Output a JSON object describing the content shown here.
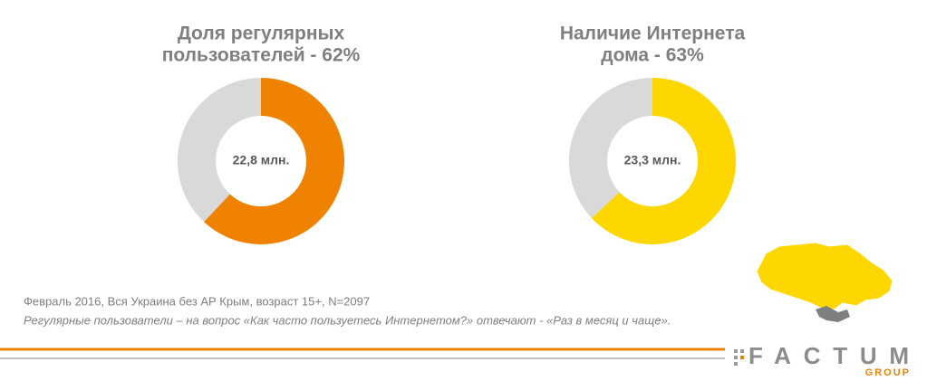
{
  "chart_data": [
    {
      "type": "donut",
      "title": [
        "Доля регулярных",
        "пользователей - 62%"
      ],
      "values": [
        62,
        38
      ],
      "colors": [
        "#ef8200",
        "#d9d9d9"
      ],
      "center_label": "22,8 млн."
    },
    {
      "type": "donut",
      "title": [
        "Наличие Интернета",
        "дома - 63%"
      ],
      "values": [
        63,
        37
      ],
      "colors": [
        "#ffd700",
        "#d9d9d9"
      ],
      "center_label": "23,3 млн."
    }
  ],
  "footnotes": [
    "Февраль 2016, Вся Украина без АР Крым, возраст 15+, N=2097",
    "Регулярные пользователи – на вопрос «Как часто пользуетесь Интернетом?» отвечают - «Раз в месяц и чаще»."
  ],
  "logo": {
    "name": "FACTUM",
    "sub": "GROUP"
  }
}
